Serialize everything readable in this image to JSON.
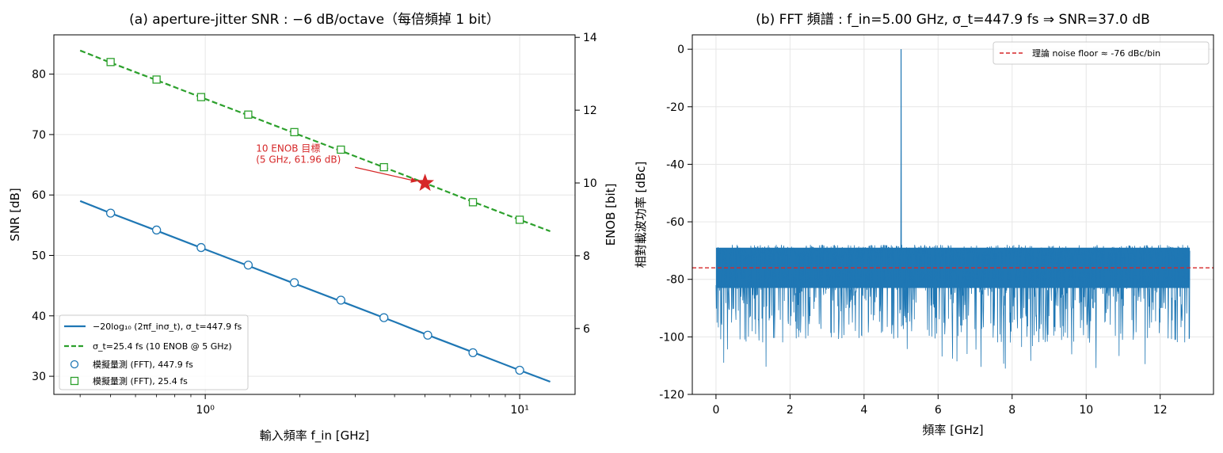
{
  "chart_data": [
    {
      "type": "line",
      "title": "(a) aperture-jitter SNR : −6 dB/octave（每倍頻掉 1 bit）",
      "xlabel": "輸入頻率 f_in [GHz]",
      "ylabel": "SNR [dB]",
      "y2label": "ENOB [bit]",
      "xscale": "log",
      "xlim": [
        0.33,
        15
      ],
      "ylim": [
        27,
        86.5
      ],
      "y2lim": [
        4.19,
        14.07
      ],
      "x_ticks": [
        1,
        10
      ],
      "x_tick_labels": [
        "10⁰",
        "10¹"
      ],
      "y_ticks": [
        30,
        40,
        50,
        60,
        70,
        80
      ],
      "y2_ticks": [
        6,
        8,
        10,
        12,
        14
      ],
      "grid": true,
      "legend_position": "lower-left",
      "series": [
        {
          "name": "−20log₁₀ (2πf_inσ_t), σ_t=447.9 fs",
          "style": "solid-line",
          "color": "#1f77b4",
          "x": [
            0.4,
            0.5,
            0.7,
            1.0,
            1.4,
            2.0,
            2.8,
            4.0,
            5.0,
            7.0,
            10.0,
            12.5
          ],
          "y": [
            59.0,
            57.0,
            54.1,
            51.0,
            48.1,
            45.0,
            42.1,
            39.0,
            37.0,
            34.1,
            31.0,
            29.1
          ]
        },
        {
          "name": "σ_t=25.4 fs (10 ENOB @ 5 GHz)",
          "style": "dashed-line",
          "color": "#2ca02c",
          "x": [
            0.4,
            0.5,
            0.7,
            1.0,
            1.4,
            2.0,
            2.8,
            4.0,
            5.0,
            7.0,
            10.0,
            12.5
          ],
          "y": [
            83.9,
            81.9,
            79.0,
            75.9,
            73.0,
            69.9,
            67.0,
            63.9,
            61.96,
            59.0,
            55.9,
            54.0
          ]
        },
        {
          "name": "模擬量測 (FFT), 447.9 fs",
          "style": "circle-markers",
          "color": "#1f77b4",
          "x": [
            0.5,
            0.7,
            0.97,
            1.37,
            1.92,
            2.7,
            3.7,
            5.1,
            7.1,
            10.0
          ],
          "y": [
            57.0,
            54.2,
            51.3,
            48.4,
            45.5,
            42.6,
            39.7,
            36.8,
            33.9,
            31.0
          ]
        },
        {
          "name": "模擬量測 (FFT), 25.4 fs",
          "style": "square-markers",
          "color": "#2ca02c",
          "x": [
            0.5,
            0.7,
            0.97,
            1.37,
            1.92,
            2.7,
            3.7,
            7.1,
            10.0
          ],
          "y": [
            82.0,
            79.1,
            76.2,
            73.3,
            70.4,
            67.5,
            64.6,
            58.8,
            55.9
          ]
        }
      ],
      "annotation": {
        "text_line1": "10 ENOB 目標",
        "text_line2": "(5 GHz, 61.96 dB)",
        "target_x": 5.0,
        "target_y": 61.96,
        "text_x": 1.45,
        "text_y": 67.2,
        "color": "#d62728"
      }
    },
    {
      "type": "line",
      "title": "(b) FFT 頻譜 : f_in=5.00 GHz, σ_t=447.9 fs ⇒ SNR=37.0 dB",
      "xlabel": "頻率 [GHz]",
      "ylabel": "相對載波功率 [dBc]",
      "xlim": [
        -0.64,
        13.44
      ],
      "ylim": [
        -120,
        5
      ],
      "x_ticks": [
        0,
        2,
        4,
        6,
        8,
        10,
        12
      ],
      "y_ticks": [
        0,
        -20,
        -40,
        -60,
        -80,
        -100,
        -120
      ],
      "grid": true,
      "legend_position": "top-right",
      "spectrum": {
        "f_start": 0,
        "f_end": 12.8,
        "carrier_freq": 5.0,
        "carrier_level": 0,
        "noise_mean": -77,
        "noise_top": -68,
        "noise_min": -112,
        "color": "#1f77b4"
      },
      "noise_floor": {
        "name": "理論 noise floor ≈ -76 dBc/bin",
        "value": -76,
        "color": "#d62728"
      }
    }
  ]
}
